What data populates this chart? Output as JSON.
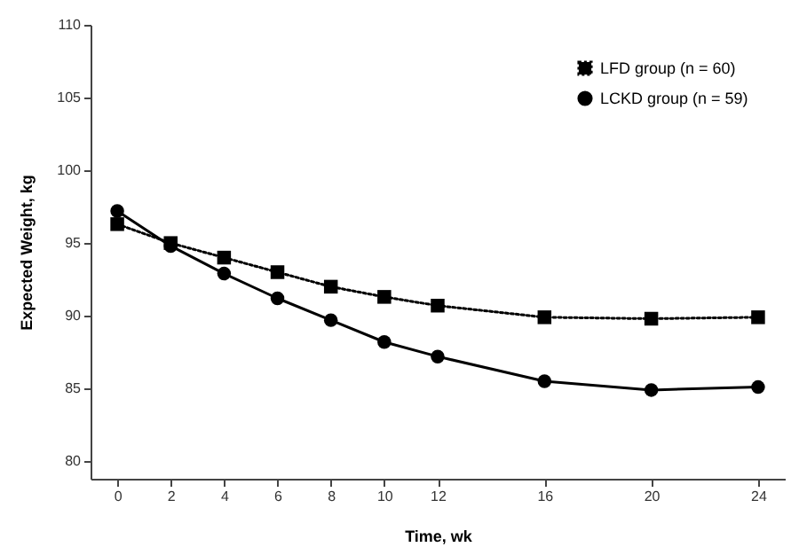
{
  "chart_data": {
    "type": "line",
    "xlabel": "Time, wk",
    "ylabel": "Expected Weight, kg",
    "x": [
      0,
      2,
      4,
      6,
      8,
      10,
      12,
      16,
      20,
      24
    ],
    "series": [
      {
        "name": "LFD group (n = 60)",
        "color": "#000000",
        "marker": "square",
        "line_style": "dotted",
        "values": [
          96.3,
          95.0,
          94.0,
          93.0,
          92.0,
          91.3,
          90.7,
          89.9,
          89.8,
          89.9
        ]
      },
      {
        "name": "LCKD group (n = 59)",
        "color": "#000000",
        "marker": "circle",
        "line_style": "solid",
        "values": [
          97.2,
          94.8,
          92.9,
          91.2,
          89.7,
          88.2,
          87.2,
          85.5,
          84.9,
          85.1
        ]
      }
    ],
    "xlim": [
      -1,
      25
    ],
    "xticks": [
      0,
      2,
      4,
      6,
      8,
      10,
      12,
      16,
      20,
      24
    ],
    "ylim": [
      78.8,
      110
    ],
    "yticks": [
      80,
      85,
      90,
      95,
      100,
      105,
      110
    ],
    "grid": false,
    "legend": "top right"
  }
}
